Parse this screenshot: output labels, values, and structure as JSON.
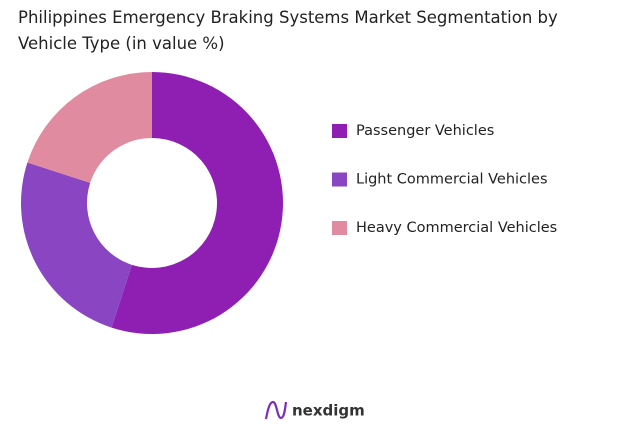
{
  "chart_data": {
    "type": "donut",
    "title": "Philippines Emergency Braking Systems Market Segmentation by Vehicle Type (in value %)",
    "categories": [
      "Passenger Vehicles",
      "Light Commercial Vehicles",
      "Heavy Commercial Vehicles"
    ],
    "values": [
      55,
      25,
      20
    ],
    "colors": [
      "#8e1fb2",
      "#8a45c2",
      "#e08ba0"
    ],
    "legend": "right"
  },
  "footer": {
    "logo": "nexdigm"
  }
}
